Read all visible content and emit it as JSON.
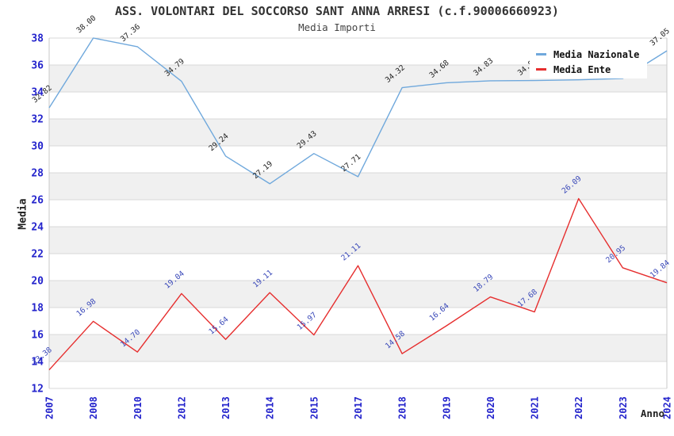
{
  "chart_data": {
    "type": "line",
    "title": "ASS. VOLONTARI DEL SOCCORSO SANT ANNA ARRESI (c.f.90006660923)",
    "subtitle": "Media Importi",
    "xlabel": "Anno",
    "ylabel": "Media",
    "ylim": [
      12,
      38
    ],
    "ytick_step": 2,
    "grid": true,
    "legend_position": "top-right",
    "categories": [
      "2007",
      "2008",
      "2010",
      "2012",
      "2013",
      "2014",
      "2015",
      "2017",
      "2018",
      "2019",
      "2020",
      "2021",
      "2022",
      "2023",
      "2024"
    ],
    "series": [
      {
        "name": "Media Nazionale",
        "color": "#6fa8dc",
        "label_color": "#222222",
        "values": [
          32.82,
          38.0,
          37.36,
          34.79,
          29.24,
          27.19,
          29.43,
          27.71,
          34.32,
          34.68,
          34.83,
          34.85,
          34.9,
          35.0,
          37.05
        ],
        "labels": [
          "32.82",
          "38.00",
          "37.36",
          "34.79",
          "29.24",
          "27.19",
          "29.43",
          "27.71",
          "34.32",
          "34.68",
          "34.83",
          "34.85",
          null,
          null,
          "37.05"
        ]
      },
      {
        "name": "Media Ente",
        "color": "#e62e2e",
        "label_color": "#3847b8",
        "values": [
          13.38,
          16.98,
          14.7,
          19.04,
          15.64,
          19.11,
          15.97,
          21.11,
          14.58,
          16.64,
          18.79,
          17.68,
          26.09,
          20.95,
          19.84
        ],
        "labels": [
          "13.38",
          "16.98",
          "14.70",
          "19.04",
          "15.64",
          "19.11",
          "15.97",
          "21.11",
          "14.58",
          "16.64",
          "18.79",
          "17.68",
          "26.09",
          "20.95",
          "19.84"
        ]
      }
    ],
    "colors": {
      "tick_label": "#2424cc",
      "band": "#f0f0f0",
      "grid": "#d9d9d9",
      "border": "#c8c8c8"
    }
  }
}
